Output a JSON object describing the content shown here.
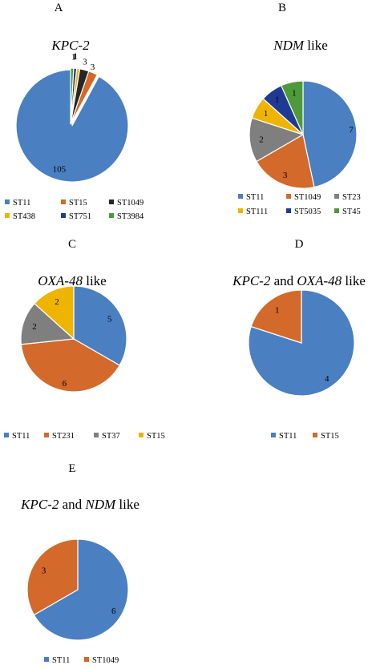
{
  "colors": {
    "blue": "#4a7fc1",
    "orange": "#d3692a",
    "gray": "#7f7f7f",
    "yellow": "#efb400",
    "navy": "#1f3a93",
    "green": "#4e9a3a",
    "dark": "#262626"
  },
  "chart_data": [
    {
      "type": "pie",
      "panel": "A",
      "title_parts": [
        {
          "text": "KPC-2",
          "italic": true
        }
      ],
      "categories": [
        "ST11",
        "ST15",
        "ST1049",
        "ST438",
        "ST751",
        "ST3984"
      ],
      "values": [
        105,
        3,
        3,
        1,
        1,
        1
      ],
      "colors": [
        "#4a7fc1",
        "#d3692a",
        "#262626",
        "#efb400",
        "#1f3a93",
        "#4e9a3a"
      ],
      "legend": [
        "ST11",
        "ST15",
        "ST1049",
        "ST438",
        "ST751",
        "ST3984"
      ]
    },
    {
      "type": "pie",
      "panel": "B",
      "title_parts": [
        {
          "text": "NDM",
          "italic": true
        },
        {
          "text": " like",
          "italic": false
        }
      ],
      "categories": [
        "ST11",
        "ST1049",
        "ST23",
        "ST111",
        "ST5035",
        "ST45"
      ],
      "values": [
        7,
        3,
        2,
        1,
        1,
        1
      ],
      "colors": [
        "#4a7fc1",
        "#d3692a",
        "#7f7f7f",
        "#efb400",
        "#1f3a93",
        "#4e9a3a"
      ],
      "legend": [
        "ST11",
        "ST1049",
        "ST23",
        "ST111",
        "ST5035",
        "ST45"
      ]
    },
    {
      "type": "pie",
      "panel": "C",
      "title_parts": [
        {
          "text": "OXA-48",
          "italic": true
        },
        {
          "text": " like",
          "italic": false
        }
      ],
      "categories": [
        "ST11",
        "ST231",
        "ST37",
        "ST15"
      ],
      "values": [
        5,
        6,
        2,
        2
      ],
      "colors": [
        "#4a7fc1",
        "#d3692a",
        "#7f7f7f",
        "#efb400"
      ],
      "legend": [
        "ST11",
        "ST231",
        "ST37",
        "ST15"
      ]
    },
    {
      "type": "pie",
      "panel": "D",
      "title_parts": [
        {
          "text": "KPC-2",
          "italic": true
        },
        {
          "text": " and ",
          "italic": false
        },
        {
          "text": "OXA-48",
          "italic": true
        },
        {
          "text": " like",
          "italic": false
        }
      ],
      "categories": [
        "ST11",
        "ST15"
      ],
      "values": [
        4,
        1
      ],
      "colors": [
        "#4a7fc1",
        "#d3692a"
      ],
      "legend": [
        "ST11",
        "ST15"
      ]
    },
    {
      "type": "pie",
      "panel": "E",
      "title_parts": [
        {
          "text": "KPC-2",
          "italic": true
        },
        {
          "text": " and ",
          "italic": false
        },
        {
          "text": "NDM",
          "italic": true
        },
        {
          "text": " like",
          "italic": false
        }
      ],
      "categories": [
        "ST11",
        "ST1049"
      ],
      "values": [
        6,
        3
      ],
      "colors": [
        "#4a7fc1",
        "#d3692a"
      ],
      "legend": [
        "ST11",
        "ST1049"
      ]
    }
  ]
}
